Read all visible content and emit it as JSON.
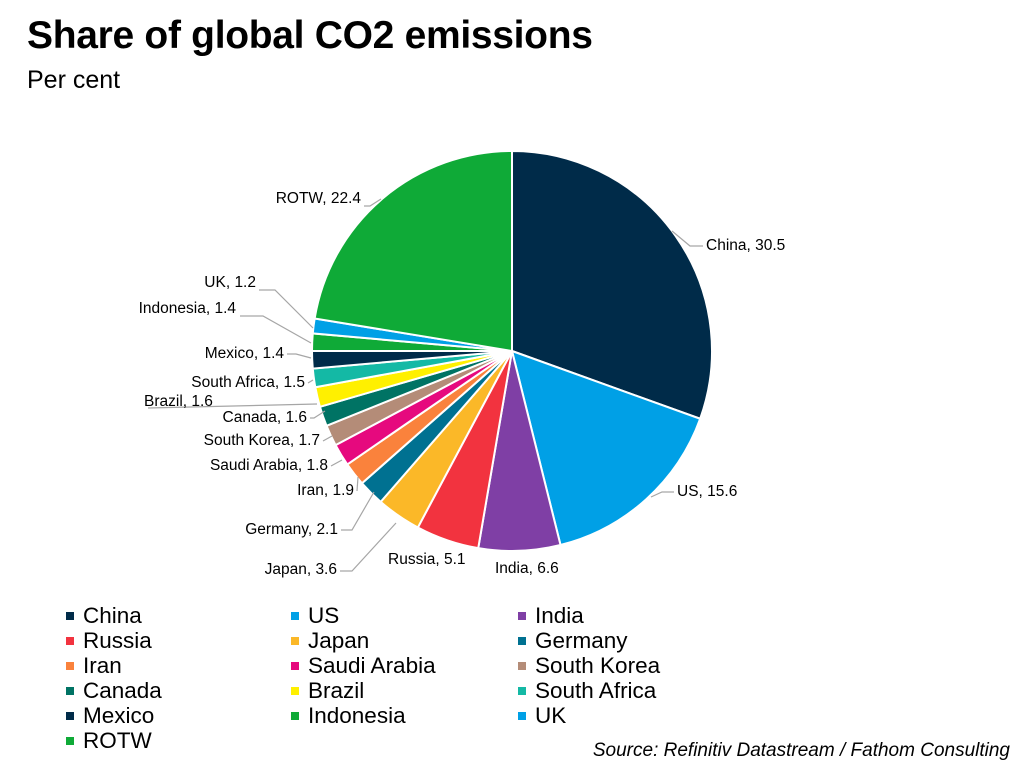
{
  "title": "Share of global CO2 emissions",
  "subtitle": "Per cent",
  "source": "Source: Refinitiv Datastream / Fathom Consulting",
  "chart_data": {
    "type": "pie",
    "title": "Share of global CO2 emissions",
    "subtitle": "Per cent",
    "start_angle": "12 o'clock",
    "direction": "clockwise",
    "legend_position": "bottom",
    "slices": [
      {
        "label": "China",
        "value": 30.5,
        "color": "#002b49",
        "data_label": "China, 30.5"
      },
      {
        "label": "US",
        "value": 15.6,
        "color": "#00a0e6",
        "data_label": "US, 15.6"
      },
      {
        "label": "India",
        "value": 6.6,
        "color": "#7f3fa5",
        "data_label": "India, 6.6"
      },
      {
        "label": "Russia",
        "value": 5.1,
        "color": "#f2333f",
        "data_label": "Russia, 5.1"
      },
      {
        "label": "Japan",
        "value": 3.6,
        "color": "#fbb828",
        "data_label": "Japan, 3.6"
      },
      {
        "label": "Germany",
        "value": 2.1,
        "color": "#007191",
        "data_label": "Germany, 2.1"
      },
      {
        "label": "Iran",
        "value": 1.9,
        "color": "#fa823c",
        "data_label": "Iran, 1.9"
      },
      {
        "label": "Saudi Arabia",
        "value": 1.8,
        "color": "#e6097e",
        "data_label": "Saudi Arabia, 1.8"
      },
      {
        "label": "South Korea",
        "value": 1.7,
        "color": "#b48c78",
        "data_label": "South Korea, 1.7"
      },
      {
        "label": "Canada",
        "value": 1.6,
        "color": "#007364",
        "data_label": "Canada, 1.6"
      },
      {
        "label": "Brazil",
        "value": 1.6,
        "color": "#fff000",
        "data_label": "Brazil, 1.6"
      },
      {
        "label": "South Africa",
        "value": 1.5,
        "color": "#14b9a5",
        "data_label": "South Africa, 1.5"
      },
      {
        "label": "Mexico",
        "value": 1.4,
        "color": "#002b49",
        "data_label": "Mexico, 1.4"
      },
      {
        "label": "Indonesia",
        "value": 1.4,
        "color": "#0faa37",
        "data_label": "Indonesia, 1.4"
      },
      {
        "label": "UK",
        "value": 1.2,
        "color": "#00a0e6",
        "data_label": "UK, 1.2"
      },
      {
        "label": "ROTW",
        "value": 22.4,
        "color": "#0faa37",
        "data_label": "ROTW, 22.4"
      }
    ]
  }
}
